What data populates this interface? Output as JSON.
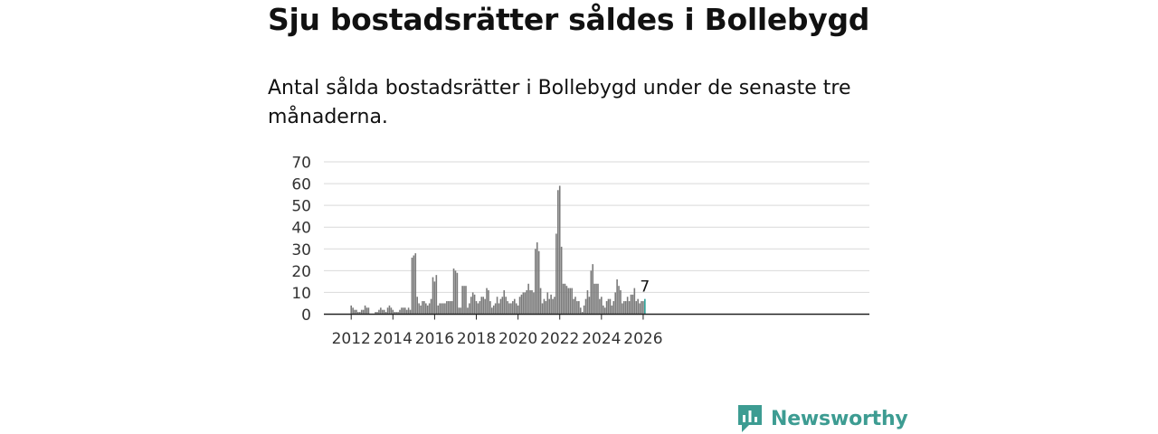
{
  "header": {
    "title": "Sju bostadsrätter såldes i Bollebygd",
    "subtitle": "Antal sålda bostadsrätter i Bollebygd under de senaste tre månaderna."
  },
  "brand": {
    "name": "Newsworthy",
    "color": "#3d9c92"
  },
  "colors": {
    "bar": "#7a7a7a",
    "highlight": "#2aa198",
    "grid": "#d9d9d9",
    "axis": "#222222"
  },
  "chart_data": {
    "type": "bar",
    "title": "Sju bostadsrätter såldes i Bollebygd",
    "xlabel": "",
    "ylabel": "",
    "ylim": [
      0,
      70
    ],
    "yticks": [
      0,
      10,
      20,
      30,
      40,
      50,
      60,
      70
    ],
    "xticks": [
      "2012",
      "2014",
      "2016",
      "2018",
      "2020",
      "2022",
      "2024",
      "2026"
    ],
    "x_start": "2012-01",
    "last_label": "7",
    "values": [
      4,
      3,
      2,
      2,
      1,
      1,
      2,
      2,
      4,
      3,
      3,
      0,
      0,
      0,
      1,
      1,
      2,
      3,
      2,
      2,
      1,
      3,
      4,
      3,
      2,
      1,
      1,
      1,
      2,
      3,
      3,
      3,
      2,
      3,
      2,
      26,
      27,
      28,
      8,
      5,
      4,
      6,
      6,
      5,
      4,
      5,
      7,
      17,
      15,
      18,
      4,
      5,
      5,
      5,
      5,
      6,
      6,
      6,
      6,
      21,
      20,
      19,
      3,
      3,
      13,
      13,
      13,
      3,
      5,
      8,
      10,
      9,
      6,
      5,
      6,
      8,
      8,
      7,
      12,
      11,
      6,
      3,
      4,
      5,
      8,
      5,
      7,
      8,
      11,
      8,
      6,
      5,
      5,
      6,
      7,
      5,
      4,
      8,
      9,
      10,
      10,
      11,
      14,
      11,
      11,
      10,
      30,
      33,
      29,
      12,
      5,
      7,
      6,
      10,
      7,
      9,
      7,
      8,
      37,
      57,
      59,
      31,
      14,
      14,
      13,
      12,
      12,
      12,
      7,
      8,
      6,
      6,
      3,
      1,
      4,
      7,
      11,
      8,
      20,
      23,
      14,
      14,
      14,
      7,
      8,
      4,
      3,
      6,
      7,
      7,
      4,
      6,
      10,
      16,
      13,
      11,
      5,
      6,
      6,
      8,
      6,
      9,
      9,
      12,
      6,
      7,
      5,
      6,
      6,
      7
    ]
  }
}
